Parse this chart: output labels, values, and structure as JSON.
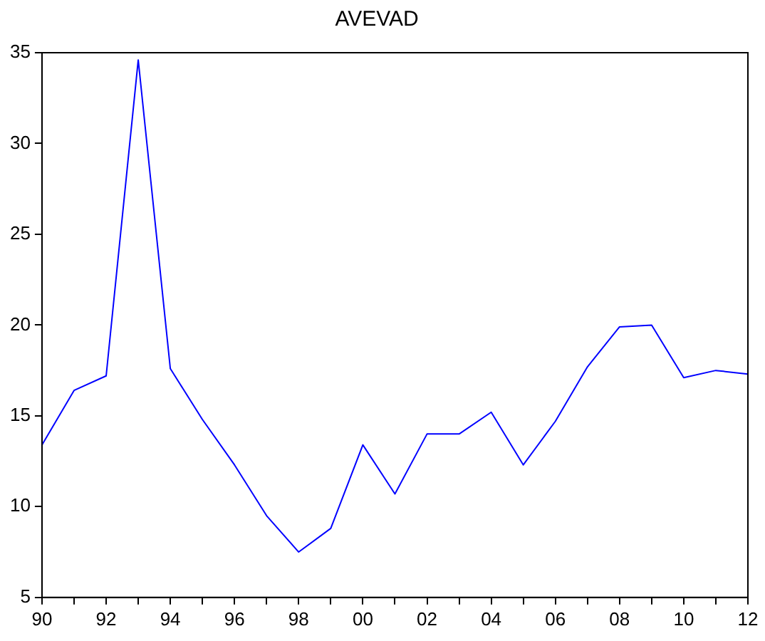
{
  "chart_data": {
    "type": "line",
    "title": "AVEVAD",
    "categories": [
      "90",
      null,
      "92",
      null,
      "94",
      null,
      "96",
      null,
      "98",
      null,
      "00",
      null,
      "02",
      null,
      "04",
      null,
      "06",
      null,
      "08",
      null,
      "10",
      null,
      "12"
    ],
    "series": [
      {
        "color": "#0000ff",
        "values": [
          13.4,
          16.4,
          17.2,
          34.6,
          17.6,
          14.8,
          12.3,
          9.5,
          7.5,
          8.8,
          13.4,
          10.7,
          14.0,
          14.0,
          15.2,
          12.3,
          14.7,
          17.7,
          19.9,
          20.0,
          17.1,
          17.5,
          17.3
        ]
      }
    ],
    "ylim": [
      5,
      35
    ],
    "yticks": [
      5,
      10,
      15,
      20,
      25,
      30,
      35
    ],
    "grid": false,
    "legend": false,
    "marker": "none",
    "line_style": "solid"
  }
}
